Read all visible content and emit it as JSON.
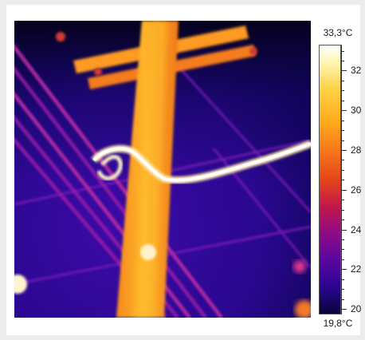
{
  "image": {
    "subject": "power pole with cross arms and lines",
    "palette": "ironbow"
  },
  "scale": {
    "max_label": "33,3°C",
    "min_label": "19,8°C",
    "min": 19.8,
    "max": 33.3,
    "ticks": [
      {
        "value": 32,
        "label": "32"
      },
      {
        "value": 30,
        "label": "30"
      },
      {
        "value": 28,
        "label": "28"
      },
      {
        "value": 26,
        "label": "26"
      },
      {
        "value": 24,
        "label": "24"
      },
      {
        "value": 22,
        "label": "22"
      },
      {
        "value": 20,
        "label": "20"
      }
    ],
    "colors": {
      "hot": "#ffffff",
      "warm": "#ffd247",
      "mid": "#e34617",
      "cool": "#8f0a86",
      "cold": "#0a0338"
    }
  }
}
